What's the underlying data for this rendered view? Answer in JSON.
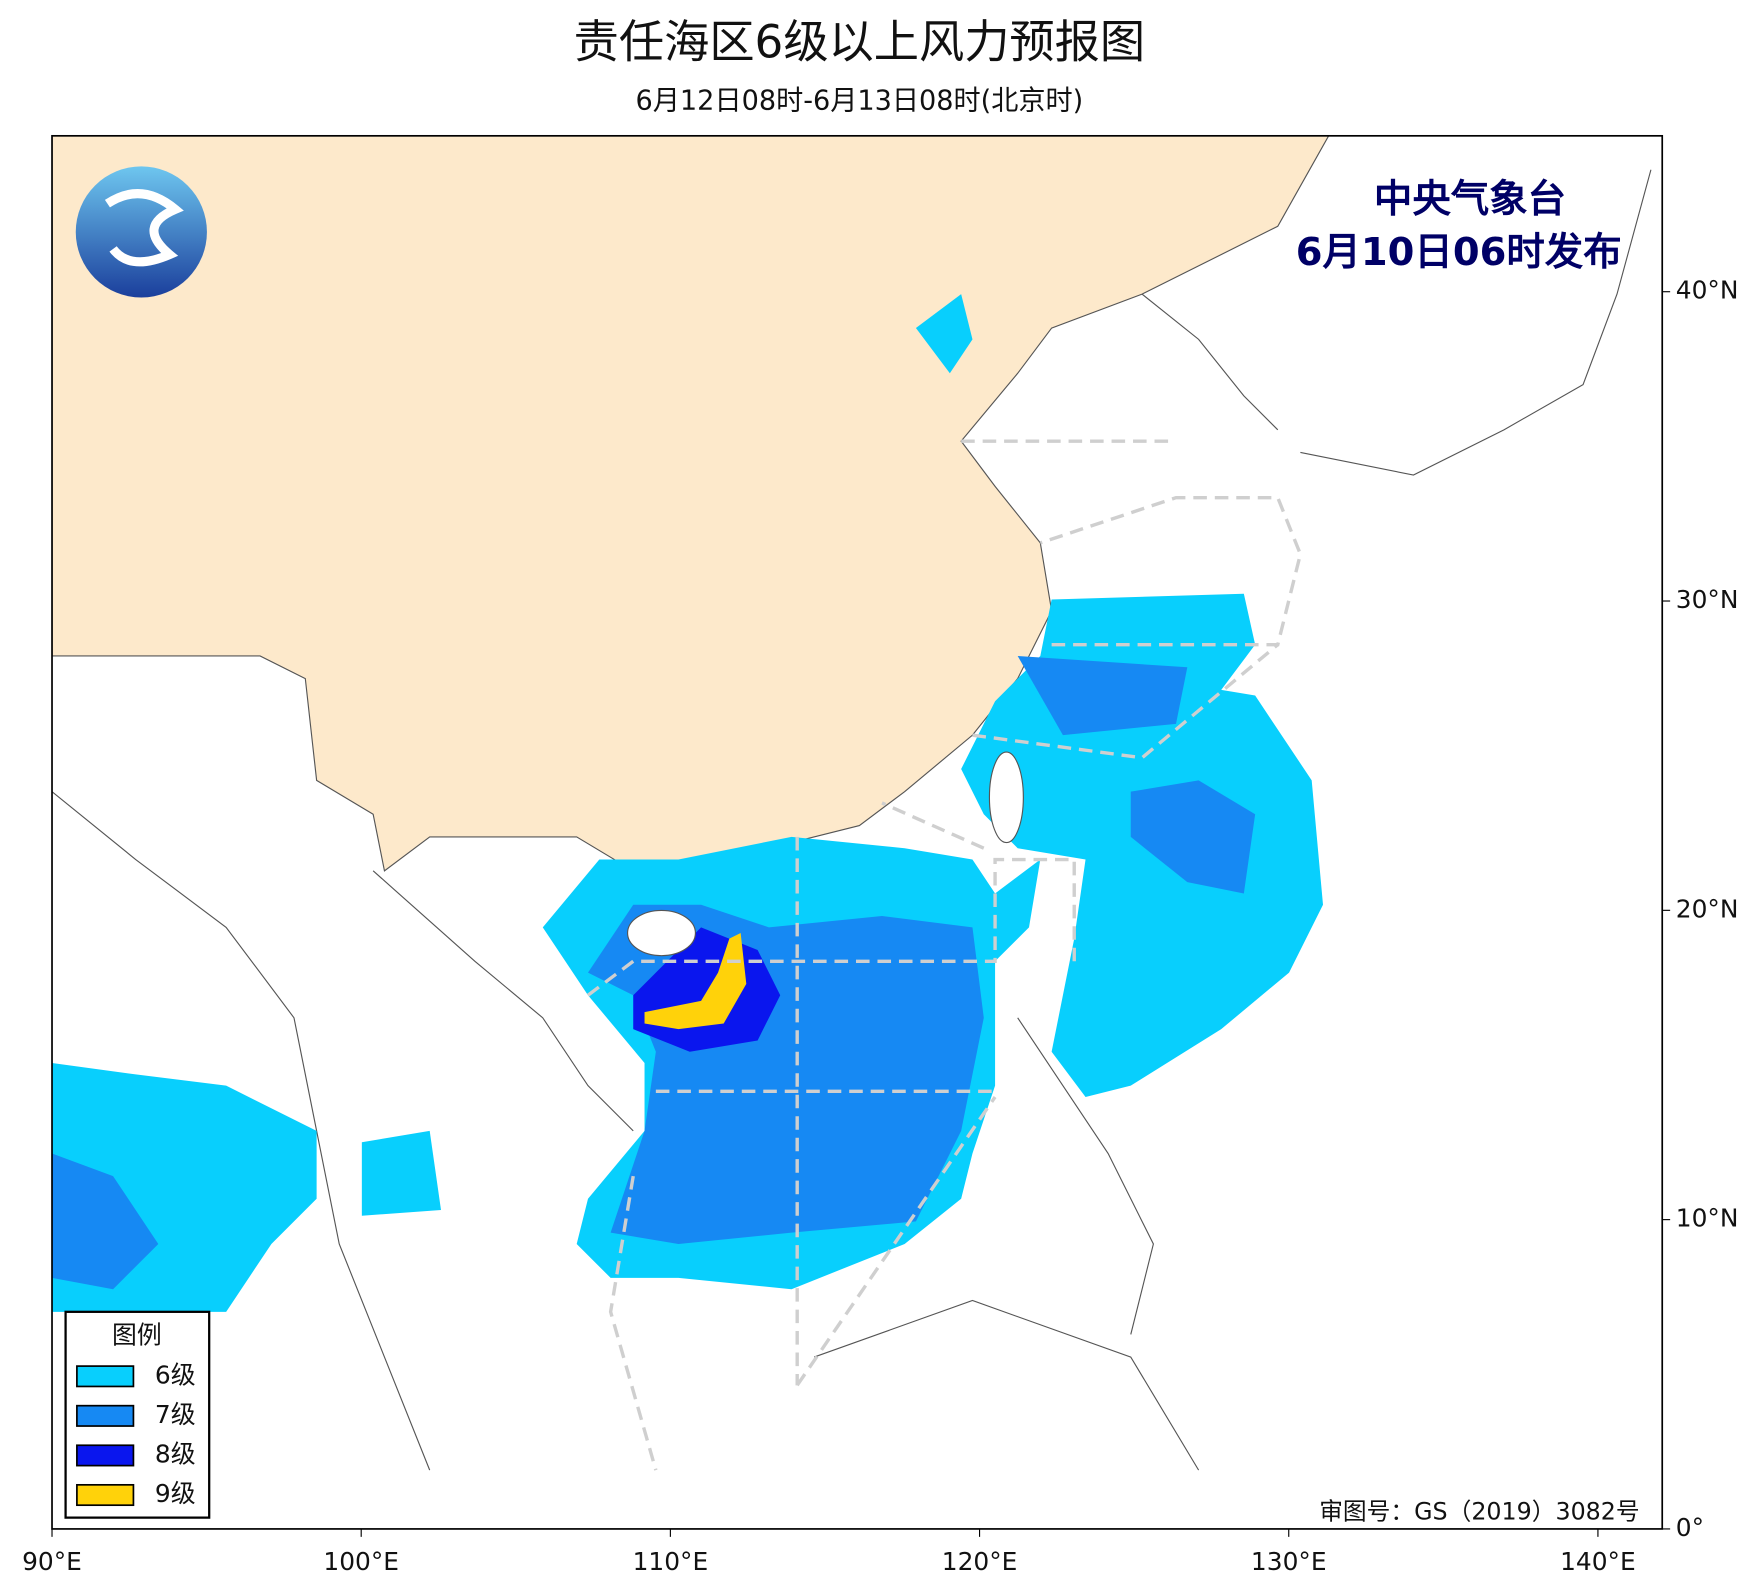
{
  "header": {
    "title": "责任海区6级以上风力预报图",
    "subtitle": "6月12日08时-6月13日08时(北京时)"
  },
  "map": {
    "agency": "中央气象台",
    "issued": "6月10日06时发布",
    "approval": "审图号：GS（2019）3082号",
    "xlim": [
      90,
      142.08
    ],
    "ylim": [
      0,
      45.04
    ],
    "xticks": [
      {
        "value": 90,
        "label": "90°E"
      },
      {
        "value": 100,
        "label": "100°E"
      },
      {
        "value": 110,
        "label": "110°E"
      },
      {
        "value": 120,
        "label": "120°E"
      },
      {
        "value": 130,
        "label": "130°E"
      },
      {
        "value": 140,
        "label": "140°E"
      }
    ],
    "yticks": [
      {
        "value": 0,
        "label": "0°"
      },
      {
        "value": 10,
        "label": "10°N"
      },
      {
        "value": 20,
        "label": "20°N"
      },
      {
        "value": 30,
        "label": "30°N"
      },
      {
        "value": 40,
        "label": "40°N"
      }
    ]
  },
  "legend": {
    "title": "图例",
    "items": [
      {
        "label": "6级",
        "color": "#08cffd"
      },
      {
        "label": "7级",
        "color": "#1689f3"
      },
      {
        "label": "8级",
        "color": "#0a16ee"
      },
      {
        "label": "9级",
        "color": "#ffd20a"
      }
    ]
  }
}
